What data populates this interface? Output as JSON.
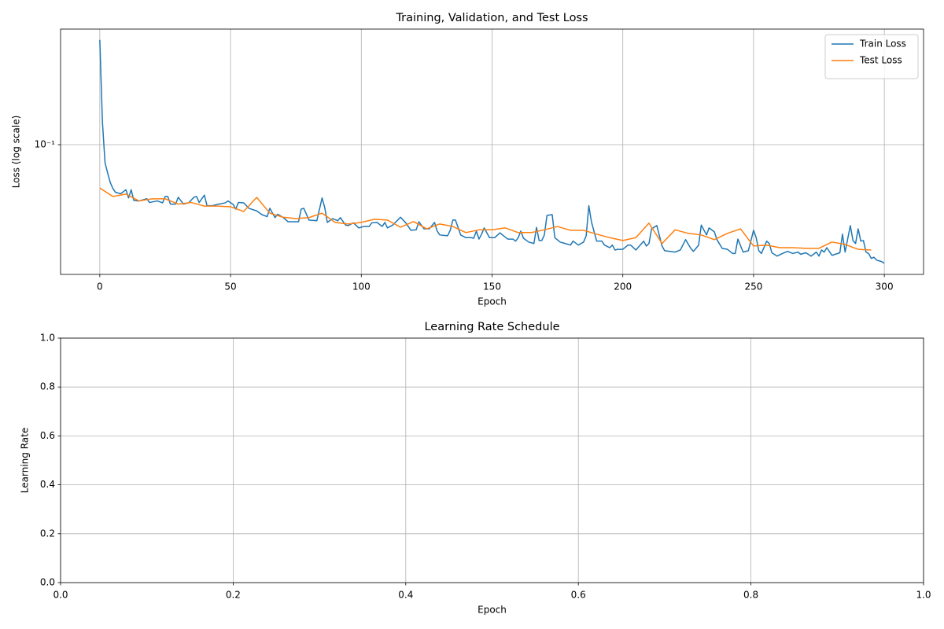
{
  "chart_data": [
    {
      "type": "line",
      "title": "Training, Validation, and Test Loss",
      "x_label": "Epoch",
      "y_label": "Loss (log scale)",
      "xlim": [
        -15,
        315
      ],
      "ylim": [
        0.0121,
        0.656
      ],
      "y_scale": "log",
      "xticks": [
        0,
        50,
        100,
        150,
        200,
        250,
        300
      ],
      "yticks": [
        {
          "value": 0.1,
          "label": "10⁻¹"
        }
      ],
      "grid": true,
      "legend": "upper right",
      "series": [
        {
          "name": "Train Loss",
          "color": "#1f77b4",
          "x": [
            0,
            1,
            2,
            3,
            4,
            5,
            6,
            8,
            10,
            11,
            12,
            13,
            15,
            18,
            19,
            22,
            24,
            25,
            26,
            27,
            29,
            30,
            32,
            34,
            36,
            37,
            38,
            40,
            41,
            43,
            45,
            48,
            49,
            51,
            52,
            53,
            55,
            57,
            60,
            62,
            64,
            65,
            67,
            68,
            70,
            72,
            76,
            77,
            78,
            80,
            83,
            85,
            86,
            87,
            89,
            91,
            92,
            94,
            95,
            97,
            99,
            101,
            103,
            104,
            106,
            108,
            109,
            110,
            112,
            115,
            117,
            119,
            121,
            122,
            124,
            126,
            128,
            129,
            130,
            133,
            134,
            135,
            136,
            138,
            140,
            142,
            143,
            144,
            145,
            146,
            147,
            149,
            151,
            153,
            154,
            156,
            158,
            159,
            160,
            161,
            162,
            164,
            166,
            167,
            168,
            169,
            170,
            171,
            173,
            174,
            176,
            178,
            180,
            181,
            183,
            185,
            186,
            187,
            188,
            190,
            192,
            193,
            195,
            196,
            197,
            198,
            200,
            202,
            203,
            205,
            208,
            209,
            210,
            211,
            213,
            215,
            216,
            218,
            220,
            222,
            224,
            226,
            227,
            229,
            230,
            232,
            233,
            235,
            236,
            238,
            240,
            242,
            243,
            244,
            246,
            248,
            250,
            251,
            252,
            253,
            255,
            256,
            257,
            259,
            261,
            263,
            265,
            267,
            268,
            270,
            272,
            274,
            275,
            276,
            277,
            278,
            280,
            283,
            284,
            285,
            287,
            288,
            289,
            290,
            291,
            292,
            293,
            294,
            295,
            296,
            297,
            299,
            300
          ],
          "values": [
            0.55,
            0.145,
            0.0745,
            0.063,
            0.054,
            0.049,
            0.046,
            0.045,
            0.048,
            0.042,
            0.048,
            0.0403,
            0.04,
            0.0415,
            0.039,
            0.04,
            0.0388,
            0.043,
            0.043,
            0.038,
            0.038,
            0.0425,
            0.038,
            0.0388,
            0.0425,
            0.043,
            0.039,
            0.044,
            0.037,
            0.037,
            0.0378,
            0.0388,
            0.04,
            0.0378,
            0.035,
            0.039,
            0.0388,
            0.0355,
            0.034,
            0.032,
            0.031,
            0.0355,
            0.0305,
            0.0322,
            0.0307,
            0.0285,
            0.0285,
            0.035,
            0.0355,
            0.0293,
            0.029,
            0.042,
            0.036,
            0.0282,
            0.03,
            0.029,
            0.0305,
            0.027,
            0.0268,
            0.028,
            0.0258,
            0.0264,
            0.0264,
            0.028,
            0.0282,
            0.0264,
            0.0282,
            0.0258,
            0.027,
            0.0307,
            0.028,
            0.0248,
            0.025,
            0.0285,
            0.0254,
            0.0254,
            0.0282,
            0.0245,
            0.023,
            0.0227,
            0.0248,
            0.0293,
            0.0293,
            0.023,
            0.022,
            0.022,
            0.0218,
            0.0245,
            0.0215,
            0.0233,
            0.0258,
            0.022,
            0.022,
            0.0238,
            0.023,
            0.0215,
            0.0215,
            0.0208,
            0.022,
            0.0245,
            0.0218,
            0.0205,
            0.02,
            0.026,
            0.021,
            0.021,
            0.023,
            0.0316,
            0.032,
            0.022,
            0.0205,
            0.02,
            0.0195,
            0.0208,
            0.0195,
            0.0205,
            0.0227,
            0.037,
            0.0285,
            0.0208,
            0.0208,
            0.0195,
            0.0187,
            0.0195,
            0.018,
            0.0182,
            0.0182,
            0.0195,
            0.0195,
            0.018,
            0.0208,
            0.0192,
            0.02,
            0.0254,
            0.0268,
            0.0192,
            0.0178,
            0.0176,
            0.0174,
            0.018,
            0.0213,
            0.0185,
            0.0176,
            0.0195,
            0.027,
            0.023,
            0.0258,
            0.0242,
            0.0213,
            0.0185,
            0.0182,
            0.017,
            0.017,
            0.0215,
            0.0174,
            0.0178,
            0.0248,
            0.022,
            0.0178,
            0.017,
            0.0208,
            0.02,
            0.0172,
            0.0163,
            0.017,
            0.0176,
            0.017,
            0.0174,
            0.0168,
            0.0172,
            0.0163,
            0.0174,
            0.0163,
            0.018,
            0.0174,
            0.0187,
            0.0165,
            0.0172,
            0.0233,
            0.0174,
            0.0268,
            0.021,
            0.02,
            0.0254,
            0.0208,
            0.021,
            0.0174,
            0.017,
            0.0157,
            0.016,
            0.0153,
            0.0149,
            0.0145
          ]
        },
        {
          "name": "Test Loss",
          "color": "#ff7f0e",
          "x": [
            0,
            5,
            10,
            15,
            20,
            25,
            30,
            35,
            40,
            45,
            50,
            55,
            60,
            65,
            70,
            75,
            80,
            85,
            90,
            95,
            100,
            105,
            110,
            115,
            120,
            125,
            130,
            135,
            140,
            145,
            150,
            155,
            160,
            165,
            170,
            175,
            180,
            185,
            190,
            195,
            200,
            205,
            210,
            215,
            220,
            225,
            230,
            235,
            240,
            245,
            250,
            255,
            260,
            265,
            270,
            275,
            280,
            285,
            290,
            295
          ],
          "values": [
            0.0494,
            0.043,
            0.0447,
            0.04,
            0.0414,
            0.0414,
            0.038,
            0.039,
            0.0368,
            0.0368,
            0.0364,
            0.0337,
            0.0424,
            0.0328,
            0.0307,
            0.03,
            0.0305,
            0.0328,
            0.0282,
            0.0275,
            0.0282,
            0.0297,
            0.0293,
            0.0261,
            0.0286,
            0.0254,
            0.0275,
            0.0264,
            0.0239,
            0.025,
            0.025,
            0.0258,
            0.0239,
            0.0239,
            0.025,
            0.0264,
            0.0248,
            0.0248,
            0.0233,
            0.022,
            0.021,
            0.022,
            0.0279,
            0.02,
            0.025,
            0.0236,
            0.023,
            0.0213,
            0.0236,
            0.0254,
            0.0192,
            0.0195,
            0.0187,
            0.0187,
            0.0185,
            0.0185,
            0.0205,
            0.0197,
            0.0182,
            0.018
          ]
        }
      ]
    },
    {
      "type": "line",
      "title": "Learning Rate Schedule",
      "x_label": "Epoch",
      "y_label": "Learning Rate",
      "xlim": [
        0,
        1
      ],
      "ylim": [
        0,
        1
      ],
      "xticks": [
        {
          "value": 0,
          "label": "0.0"
        },
        {
          "value": 0.2,
          "label": "0.2"
        },
        {
          "value": 0.4,
          "label": "0.4"
        },
        {
          "value": 0.6,
          "label": "0.6"
        },
        {
          "value": 0.8,
          "label": "0.8"
        },
        {
          "value": 1,
          "label": "1.0"
        }
      ],
      "yticks": [
        {
          "value": 0,
          "label": "0.0"
        },
        {
          "value": 0.2,
          "label": "0.2"
        },
        {
          "value": 0.4,
          "label": "0.4"
        },
        {
          "value": 0.6,
          "label": "0.6"
        },
        {
          "value": 0.8,
          "label": "0.8"
        },
        {
          "value": 1,
          "label": "1.0"
        }
      ],
      "grid": true,
      "series": []
    }
  ]
}
